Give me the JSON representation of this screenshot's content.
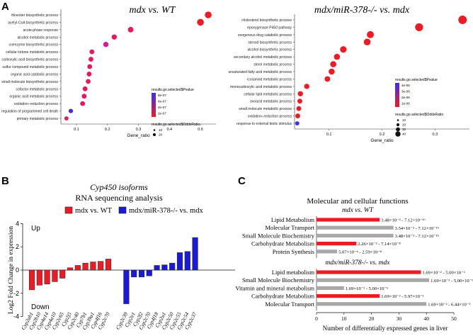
{
  "panels": {
    "A": "A",
    "B": "B",
    "C": "C"
  },
  "chart_data": [
    {
      "type": "scatter",
      "id": "A1",
      "title": "mdx vs. WT",
      "xlabel": "Gene_ratio",
      "xlim": [
        0.05,
        0.55
      ],
      "xticks": [
        "0.1",
        "0.2",
        "0.3",
        "0.4",
        "0.5"
      ],
      "xtick_values": [
        0.1,
        0.2,
        0.3,
        0.4,
        0.5
      ],
      "categories": [
        "thioester biosynthetic process",
        "acetyl-CoA biosynthetic process",
        "acute-phase response",
        "alcohol metabolic process",
        "coenzyme biosynthetic process",
        "cellular ketone metabolic process",
        "carboxylic acid biosynthetic process",
        "sulfur compound metabolic process",
        "organic acid catabolic process",
        "small molecule biosynthetic process",
        "cofactor metabolic process",
        "organic acid metabolic process",
        "oxidation–reduction process",
        "regulation of programmed cell death",
        "primary metabolic process"
      ],
      "x": [
        0.525,
        0.5,
        0.275,
        0.222,
        0.195,
        0.15,
        0.147,
        0.143,
        0.141,
        0.138,
        0.128,
        0.125,
        0.12,
        0.082,
        0.068
      ],
      "sizes": [
        20,
        20,
        12,
        10,
        10,
        8,
        8,
        8,
        8,
        8,
        8,
        8,
        8,
        6,
        5
      ],
      "colors": [
        "#ee1b24",
        "#ee1b24",
        "#e8195b",
        "#e8195b",
        "#d6199a",
        "#e8195b",
        "#e8195b",
        "#e8195b",
        "#e8195b",
        "#e8195b",
        "#e8195b",
        "#e8195b",
        "#e8195b",
        "#3f2fe0",
        "#e8195b"
      ],
      "legend": {
        "pvalue_title": "results.go.selected$Pvalue",
        "pvalue_labels": [
          "8e-07",
          "6e-07",
          "4e-07",
          "2e-07"
        ],
        "size_title": "results.go.selected$OddsRatio",
        "size_labels": [
          "10",
          "20"
        ]
      }
    },
    {
      "type": "scatter",
      "id": "A2",
      "title": "mdx/miR-378-/- vs. mdx",
      "xlabel": "Gene_ratio",
      "xlim": [
        0.035,
        0.365
      ],
      "xticks": [
        "0.1",
        "0.2",
        "0.3"
      ],
      "xtick_values": [
        0.1,
        0.2,
        0.3
      ],
      "categories": [
        "cholesterol biosynthetic process",
        "epoxygenase P450 pathway",
        "exogenous drug catabolic process",
        "steroid biosynthetic process",
        "alcohol biosynthetic process",
        "secondary alcohol metabolic process",
        "sterol metabolic process",
        "unsaturated fatty acid metabolic process",
        "icosanoid metabolic process",
        "monocarboxylic acid metabolic process",
        "cellular lipid metabolic process",
        "oxoacid metabolic process",
        "small molecule metabolic process",
        "oxidation–reduction process",
        "response to external biotic stimulus"
      ],
      "x": [
        0.352,
        0.27,
        0.178,
        0.172,
        0.127,
        0.115,
        0.108,
        0.105,
        0.097,
        0.058,
        0.046,
        0.045,
        0.043,
        0.041,
        0.04
      ],
      "sizes": [
        35,
        30,
        22,
        20,
        18,
        15,
        15,
        15,
        12,
        10,
        10,
        8,
        8,
        8,
        5
      ],
      "colors": [
        "#ee1b24",
        "#ee1b24",
        "#ee1b24",
        "#ee1b24",
        "#ee1b24",
        "#ee1b24",
        "#ee1b24",
        "#ee1b24",
        "#ee1b24",
        "#ee1b24",
        "#ee1b24",
        "#ee1b24",
        "#ee1b24",
        "#ee1b24",
        "#3f2fe0"
      ],
      "legend": {
        "pvalue_title": "results.go.selected$Pvalue",
        "pvalue_labels": [
          "4e-06",
          "3e-06",
          "2e-06",
          "1e-06"
        ],
        "size_title": "results.go.selected$OddsRatio",
        "size_labels": [
          "10",
          "20",
          "30",
          "40"
        ]
      }
    },
    {
      "type": "bar",
      "id": "B",
      "title": "Cyp450 isoforms",
      "subtitle": "RNA sequencing analysis",
      "ylabel": "Log2 Fold Change in expression",
      "ylim": [
        -4,
        4
      ],
      "yticks": [
        "4",
        "2",
        "0",
        "-2",
        "-4"
      ],
      "ytick_values": [
        4,
        2,
        0,
        -2,
        -4
      ],
      "annot_up": "Up",
      "annot_down": "Down",
      "legend": [
        "mdx vs. WT",
        "mdx/miR-378-/- vs. mdx"
      ],
      "series": [
        {
          "name": "mdx vs. WT",
          "color": "#ee1b24",
          "categories": [
            "Cyp2ab1",
            "Cyp2b10",
            "Cyp4a14",
            "Cyp4a10",
            "Cyp2c65",
            "Cyp2j5",
            "Cyp2c40",
            "Cyp7b1",
            "Cyp39a1",
            "Cyp4f16",
            "Cyp2c70"
          ],
          "values": [
            -1.7,
            -1.3,
            -1.2,
            -1.0,
            -0.7,
            0.2,
            0.4,
            0.6,
            0.7,
            0.75,
            0.95
          ]
        },
        {
          "name": "mdx/miR-378-/- vs. mdx",
          "color": "#1a1adb",
          "categories": [
            "Cyp2c39",
            "Cyp2e1",
            "Cyp2f2",
            "Cyp2c70",
            "Cyp4f18",
            "Cyp2u1",
            "Cyp2c50",
            "Cyp2c55",
            "Cyp2c54",
            "Cyp2c37"
          ],
          "values": [
            -2.9,
            -0.6,
            -0.6,
            -0.5,
            0.4,
            0.45,
            0.6,
            1.5,
            1.6,
            2.8
          ]
        }
      ]
    },
    {
      "type": "bar",
      "id": "C",
      "title": "Molecular and cellular functions",
      "xlabel": "Number of differentially expressed genes in liver",
      "xlim": [
        0,
        50
      ],
      "xticks": [
        "0",
        "10",
        "20",
        "30",
        "40",
        "50"
      ],
      "xtick_values": [
        0,
        10,
        20,
        30,
        40,
        50
      ],
      "groups": [
        {
          "subtitle": "mdx vs. WT",
          "categories": [
            "Lipid Metabolism",
            "Molecular Transport",
            "Small Molecule Biochemistry",
            "Carbohydrate Metabolism",
            "Protein Synthesis"
          ],
          "values": [
            23,
            28,
            28,
            14.5,
            7.5
          ],
          "colors": [
            "#ee1b24",
            "#a8a8a8",
            "#a8a8a8",
            "#ee1b24",
            "#a8a8a8"
          ],
          "labels": [
            "3.48×10⁻³ - 7.12×10⁻¹⁶",
            "3.54×10⁻³ - 7.12×10⁻¹⁶",
            "3.48×10⁻³ - 7.12×10⁻¹⁶",
            "2.26×10⁻³ - 7.14×10⁻⁸",
            "5.07×10⁻⁴ - 2.59×10⁻⁸"
          ]
        },
        {
          "subtitle": "mdx/miR-378-/- vs. mdx",
          "categories": [
            "Lipid metabolism",
            "Small Molecule Biochemistry",
            "Vitamin and mineral metabolism",
            "Carbohydrate Metabolism",
            "Molecular Transport"
          ],
          "values": [
            38,
            41,
            10,
            23,
            40
          ],
          "colors": [
            "#ee1b24",
            "#a8a8a8",
            "#a8a8a8",
            "#ee1b24",
            "#a8a8a8"
          ],
          "labels": [
            "1.69×10⁻² - 5.00×10⁻⁶",
            "1.69×10⁻³ - 5.00×10⁻⁶",
            "1.69×10⁻² - 5.00×10⁻⁶",
            "1.69×10⁻² - 5.97×10⁻⁵",
            "1.69×10⁻² - 6.44×10⁻⁵"
          ]
        }
      ]
    }
  ]
}
